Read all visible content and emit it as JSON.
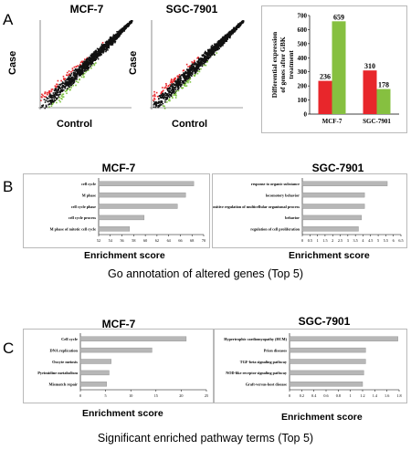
{
  "panelA": {
    "letter": "A",
    "scatter_left": {
      "title": "MCF-7",
      "xlabel": "Control",
      "ylabel": "Case"
    },
    "scatter_right": {
      "title": "SGC-7901",
      "xlabel": "Control",
      "ylabel": "Case"
    },
    "colors": {
      "up": "#e8262b",
      "down": "#7ec242",
      "neutral": "#111111"
    }
  },
  "panelB": {
    "letter": "B",
    "caption": "Go annotation of altered genes (Top 5)",
    "xlabel": "Enrichment score"
  },
  "panelC": {
    "letter": "C",
    "caption": "Significant enriched pathway terms (Top 5)",
    "xlabel": "Enrichment score"
  },
  "chart_data": [
    {
      "id": "a_bar",
      "type": "bar",
      "ylabel": "Differential expression of genes after GBK treatment",
      "categories": [
        "MCF-7",
        "SGC-7901"
      ],
      "series": [
        {
          "color": "#e8262b",
          "values": [
            236,
            310
          ]
        },
        {
          "color": "#86c040",
          "values": [
            659,
            178
          ]
        }
      ],
      "ylim": [
        0,
        700
      ],
      "yticks": [
        0,
        100,
        200,
        300,
        400,
        500,
        600,
        700
      ]
    },
    {
      "id": "b_mcf7",
      "type": "bar",
      "orientation": "horizontal",
      "title": "MCF-7",
      "categories": [
        "cell cycle",
        "M phase",
        "cell cycle phase",
        "cell cycle process",
        "M phase of mitotic cell cycle"
      ],
      "values": [
        68.3,
        66.9,
        65.5,
        59.8,
        57.3
      ],
      "xlim": [
        52,
        70
      ],
      "xticks": [
        52,
        54,
        56,
        58,
        60,
        62,
        64,
        66,
        68,
        70
      ]
    },
    {
      "id": "b_sgc",
      "type": "bar",
      "orientation": "horizontal",
      "title": "SGC-7901",
      "categories": [
        "response to organic substance",
        "locomotory behavior",
        "positive regulation of multicellular organismal process",
        "behavior",
        "regulation of cell proliferation"
      ],
      "values": [
        5.6,
        4.1,
        4.1,
        3.9,
        3.7
      ],
      "xlim": [
        0,
        6.5
      ],
      "xticks": [
        0,
        0.5,
        1,
        1.5,
        2,
        2.5,
        3,
        3.5,
        4,
        4.5,
        5,
        5.5,
        6,
        6.5
      ],
      "xticklabels": [
        "0",
        "0.5",
        "1",
        "1.5",
        "2",
        "2.5",
        "3",
        "3.5",
        "4",
        "4.5",
        "5",
        "5.5",
        "6",
        "6.5"
      ]
    },
    {
      "id": "c_mcf7",
      "type": "bar",
      "orientation": "horizontal",
      "title": "MCF-7",
      "categories": [
        "Cell cycle",
        "DNA replication",
        "Oocyte meiosis",
        "Pyrimidine metabolism",
        "Mismatch repair"
      ],
      "values": [
        21.0,
        14.2,
        6.1,
        5.7,
        5.2
      ],
      "xlim": [
        0,
        25
      ],
      "xticks": [
        0,
        5,
        10,
        15,
        20,
        25
      ]
    },
    {
      "id": "c_sgc",
      "type": "bar",
      "orientation": "horizontal",
      "title": "SGC-7901",
      "categories": [
        "Hypertrophic cardiomyopathy (HCM)",
        "Prion diseases",
        "TGF-beta signaling pathway",
        "NOD-like receptor signaling pathway",
        "Graft-versus-host disease"
      ],
      "values": [
        1.78,
        1.25,
        1.25,
        1.22,
        1.2
      ],
      "xlim": [
        0,
        1.8
      ],
      "xticks": [
        0,
        0.2,
        0.4,
        0.6,
        0.8,
        1,
        1.2,
        1.4,
        1.6,
        1.8
      ],
      "xticklabels": [
        "0",
        "0.2",
        "0.4",
        "0.6",
        "0.8",
        "1",
        "1.2",
        "1.4",
        "1.6",
        "1.8"
      ]
    }
  ]
}
